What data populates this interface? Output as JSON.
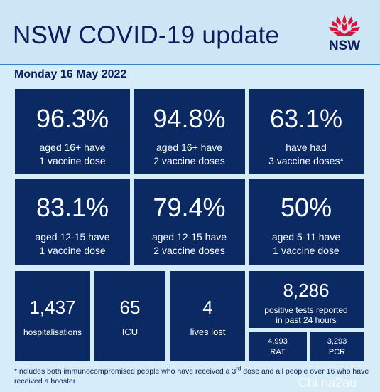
{
  "header": {
    "title": "NSW COVID-19 update",
    "logo_text": "NSW"
  },
  "date": "Monday 16 May 2022",
  "vaccination": [
    {
      "value": "96.3%",
      "line1": "aged 16+ have",
      "line2": "1 vaccine dose"
    },
    {
      "value": "94.8%",
      "line1": "aged 16+ have",
      "line2": "2 vaccine doses"
    },
    {
      "value": "63.1%",
      "line1": "have had",
      "line2": "3 vaccine doses*"
    },
    {
      "value": "83.1%",
      "line1": "aged 12-15 have",
      "line2": "1 vaccine dose"
    },
    {
      "value": "79.4%",
      "line1": "aged 12-15 have",
      "line2": "2 vaccine doses"
    },
    {
      "value": "50%",
      "line1": "aged 5-11 have",
      "line2": "1 vaccine dose"
    }
  ],
  "stats": {
    "hospitalisations": {
      "value": "1,437",
      "label": "hospitalisations"
    },
    "icu": {
      "value": "65",
      "label": "ICU"
    },
    "lives_lost": {
      "value": "4",
      "label": "lives lost"
    },
    "positive_tests": {
      "value": "8,286",
      "line1": "positive tests reported",
      "line2": "in past 24 hours"
    },
    "rat": {
      "value": "4,993",
      "label": "RAT"
    },
    "pcr": {
      "value": "3,293",
      "label": "PCR"
    }
  },
  "footnote": {
    "part1": "*Includes both immunocompromised people who have received a 3",
    "sup": "rd",
    "part2": " dose and all people over 16 who have received a booster"
  },
  "watermark": "Chi na2au",
  "colors": {
    "background": "#d6ecf8",
    "tile": "#0b2a63",
    "title": "#0b1e5b",
    "waratah": "#d7153a"
  }
}
